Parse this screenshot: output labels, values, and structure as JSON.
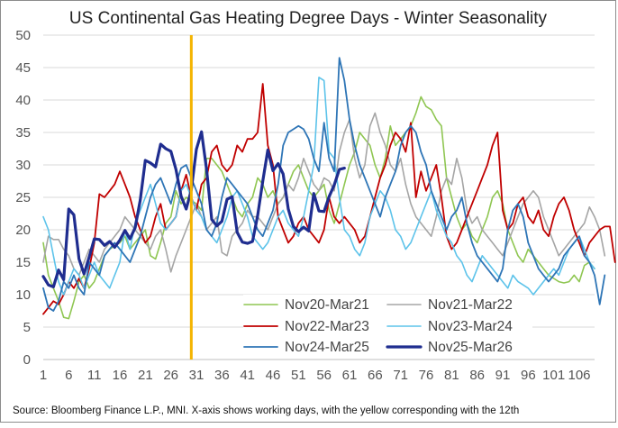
{
  "chart_data": {
    "type": "line",
    "title": "US Continental Gas Heating Degree Days - Winter Seasonality",
    "source_note": "Source: Bloomberg Finance L.P., MNI. X-axis shows working days, with the yellow corresponding with the 12th",
    "xlabel": "",
    "ylabel": "",
    "ylim": [
      0,
      50
    ],
    "y_ticks": [
      0,
      5,
      10,
      15,
      20,
      25,
      30,
      35,
      40,
      45,
      50
    ],
    "xlim": [
      1,
      109
    ],
    "x_tick_labels": [
      "1",
      "6",
      "11",
      "16",
      "21",
      "26",
      "31",
      "36",
      "41",
      "46",
      "51",
      "56",
      "61",
      "66",
      "71",
      "76",
      "81",
      "86",
      "91",
      "96",
      "101",
      "106"
    ],
    "marker_day": 30,
    "marker_color": "#f4b400",
    "grid": true,
    "legend_placement": "bottom-center",
    "series": [
      {
        "name": "Nov20-Mar21",
        "color": "#8fc652",
        "width": 1.6,
        "values": [
          18,
          13,
          11,
          9,
          6.5,
          6.3,
          9,
          12,
          13,
          11,
          12,
          14,
          16,
          17,
          17.5,
          18,
          19,
          17,
          18,
          19,
          20,
          16,
          15.5,
          18,
          21,
          22,
          26,
          24,
          25,
          24.5,
          24,
          23,
          31,
          31,
          30,
          29,
          27,
          25,
          23,
          22,
          24,
          25,
          28,
          27,
          25,
          26,
          24,
          25,
          27,
          29,
          30,
          28,
          26,
          25,
          26,
          27,
          23,
          21,
          24,
          27,
          30,
          32,
          35,
          34,
          33,
          30,
          28,
          31,
          36,
          33,
          34,
          35,
          36,
          38,
          40.5,
          39,
          38.5,
          37,
          36,
          28,
          25,
          22,
          20,
          21,
          19,
          18,
          20,
          22,
          25,
          26,
          24,
          20,
          18,
          16,
          15,
          17,
          16,
          15,
          14,
          13,
          12.5,
          12,
          11.8,
          12,
          13,
          12,
          14.5,
          15,
          14
        ]
      },
      {
        "name": "Nov21-Mar22",
        "color": "#a5a5a5",
        "width": 1.6,
        "values": [
          15,
          19,
          18.5,
          18.5,
          17,
          16,
          14,
          13,
          15,
          17,
          16,
          15,
          17,
          18,
          19,
          20,
          22,
          21,
          20,
          19,
          18,
          17,
          19,
          20,
          17,
          13.5,
          16,
          18,
          20,
          22,
          24,
          22,
          20,
          21,
          22,
          16.5,
          16,
          19,
          20,
          21,
          23,
          22,
          22,
          21,
          20,
          22,
          24,
          25,
          27,
          26,
          28,
          31,
          29,
          27,
          26,
          28,
          27.5,
          26,
          32,
          35,
          37,
          31,
          28,
          30,
          36,
          38,
          35,
          33,
          30,
          29,
          31,
          27,
          24,
          22,
          21,
          20,
          19,
          22,
          26,
          28,
          27,
          31,
          28,
          23,
          21,
          22,
          20,
          19,
          18,
          17,
          16,
          18,
          20,
          22,
          24,
          25,
          26,
          25,
          22,
          20,
          18,
          16,
          17,
          18,
          19,
          20,
          21,
          23.5,
          22,
          20,
          16
        ]
      },
      {
        "name": "Nov22-Mar23",
        "color": "#c00000",
        "width": 1.8,
        "values": [
          7,
          8,
          9,
          8.5,
          10,
          12,
          11,
          12.5,
          11,
          14,
          18,
          25.5,
          25,
          26,
          27,
          29,
          27,
          25,
          22,
          20,
          18,
          19,
          22,
          24,
          20,
          21,
          22,
          26,
          28.5,
          25,
          23,
          27,
          28,
          32,
          33,
          30,
          29,
          30,
          33,
          32,
          34,
          34,
          35,
          42.5,
          33,
          30,
          22,
          20,
          18,
          19,
          21,
          22,
          20,
          19,
          18,
          20,
          25,
          22,
          21,
          22,
          21,
          20,
          18,
          19,
          22,
          25,
          28,
          30,
          33,
          35,
          34,
          32,
          36.5,
          25,
          29,
          26,
          28,
          30,
          25,
          19,
          17,
          18,
          20,
          22,
          24,
          26,
          28,
          30,
          33,
          35,
          23,
          20,
          21,
          24,
          25,
          22,
          21,
          23,
          20,
          19,
          22,
          24,
          25,
          23,
          20,
          18,
          16,
          18,
          19,
          20,
          20.5,
          20.5,
          15
        ]
      },
      {
        "name": "Nov23-Mar24",
        "color": "#5dc3ea",
        "width": 1.6,
        "values": [
          22,
          20,
          16,
          12,
          10,
          12,
          14,
          13,
          11,
          13,
          15,
          13,
          12,
          11,
          13,
          15,
          20,
          17,
          21,
          23,
          25,
          27,
          24,
          21,
          20,
          21,
          22,
          26,
          27,
          25,
          23,
          22,
          20,
          19,
          18,
          20,
          22,
          25,
          26,
          24,
          22,
          19,
          18,
          17,
          18,
          20,
          22,
          23,
          21,
          20,
          19,
          22,
          26,
          30,
          43.5,
          43,
          32,
          31,
          25,
          20,
          19,
          17,
          16,
          18,
          22,
          24,
          26,
          25,
          23,
          20,
          19,
          17,
          18,
          20,
          22,
          24,
          26,
          23,
          21,
          19,
          18,
          16,
          15,
          13,
          12,
          14,
          16,
          15,
          14,
          13,
          12,
          11,
          13,
          12,
          11.5,
          11,
          10,
          11,
          12,
          13,
          14,
          13,
          15,
          17,
          18,
          19,
          17,
          15,
          14
        ]
      },
      {
        "name": "Nov24-Mar25",
        "color": "#2e75b6",
        "width": 1.8,
        "values": [
          11,
          8,
          7.5,
          9,
          12,
          11,
          13,
          11,
          10,
          15,
          14,
          13,
          16,
          17,
          18,
          17,
          16,
          15,
          17,
          19,
          22,
          25,
          27,
          28,
          26,
          24,
          27,
          29.5,
          30,
          28,
          26,
          24,
          20,
          19,
          21,
          25,
          28,
          27,
          26,
          25,
          24,
          22,
          20,
          19,
          21,
          23,
          27,
          33,
          35,
          35.5,
          36,
          35.5,
          34,
          31,
          29,
          36.5,
          31,
          29,
          46.5,
          43,
          37,
          33,
          30,
          28,
          26,
          24,
          22,
          25,
          27,
          29,
          33,
          35,
          36,
          35,
          32,
          30,
          26,
          24,
          22,
          20,
          22,
          23,
          25,
          21,
          18,
          16,
          15,
          14,
          13,
          12,
          14,
          20,
          23,
          24,
          22,
          18,
          16,
          14,
          13,
          12,
          13,
          14,
          16,
          17,
          18,
          19,
          16,
          15,
          13,
          8.5,
          13
        ]
      },
      {
        "name": "Nov25-Mar26",
        "color": "#1f2d8f",
        "width": 3.2,
        "values": [
          12.8,
          11.5,
          11.2,
          13.8,
          12.3,
          23.2,
          22.3,
          15.5,
          13.2,
          15.8,
          18.6,
          18.5,
          17.6,
          18.2,
          17.3,
          18.4,
          19.9,
          18.6,
          20.3,
          24.6,
          30.7,
          30.3,
          29.7,
          33.2,
          32.5,
          32.1,
          29.3,
          25.2,
          23.2,
          26.1,
          32.4,
          35.1,
          29.3,
          21.6,
          20.6,
          21.3,
          24.7,
          25.1,
          19.6,
          18.1,
          17.9,
          18.2,
          22.2,
          27.5,
          32.3,
          29.1,
          30.2,
          28.6,
          23.2,
          20.5,
          19.7,
          20.4,
          19.8,
          25.6,
          22.9,
          22.8,
          25.1,
          26.9,
          29.3,
          29.5
        ]
      }
    ]
  }
}
